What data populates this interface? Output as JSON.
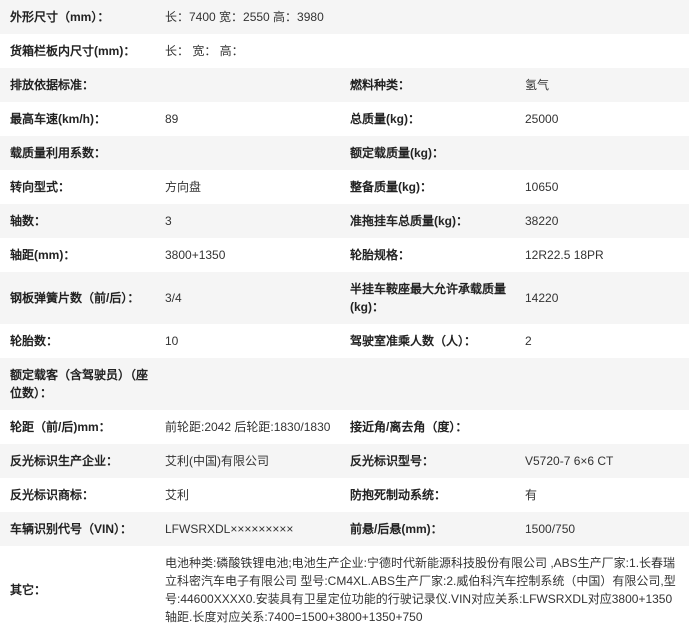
{
  "rows": [
    {
      "stripe": true,
      "full": true,
      "l1": "外形尺寸（mm）：",
      "v1": "长：7400 宽：2550 高：3980"
    },
    {
      "stripe": false,
      "full": true,
      "l1": "货箱栏板内尺寸(mm)：",
      "v1": "长： 宽： 高："
    },
    {
      "stripe": true,
      "l1": "排放依据标准：",
      "v1": "",
      "l2": "燃料种类：",
      "v2": "氢气"
    },
    {
      "stripe": false,
      "l1": "最高车速(km/h)：",
      "v1": "89",
      "l2": "总质量(kg)：",
      "v2": "25000"
    },
    {
      "stripe": true,
      "l1": "载质量利用系数：",
      "v1": "",
      "l2": "额定载质量(kg)：",
      "v2": ""
    },
    {
      "stripe": false,
      "l1": "转向型式：",
      "v1": "方向盘",
      "l2": "整备质量(kg)：",
      "v2": "10650"
    },
    {
      "stripe": true,
      "l1": "轴数：",
      "v1": "3",
      "l2": "准拖挂车总质量(kg)：",
      "v2": "38220"
    },
    {
      "stripe": false,
      "l1": "轴距(mm)：",
      "v1": "3800+1350",
      "l2": "轮胎规格：",
      "v2": "12R22.5 18PR"
    },
    {
      "stripe": true,
      "l1": "钢板弹簧片数（前/后）：",
      "v1": "3/4",
      "l2": "半挂车鞍座最大允许承载质量(kg)：",
      "v2": "14220"
    },
    {
      "stripe": false,
      "l1": "轮胎数：",
      "v1": "10",
      "l2": "驾驶室准乘人数（人）：",
      "v2": "2"
    },
    {
      "stripe": true,
      "full": true,
      "l1": "额定载客（含驾驶员）（座位数）：",
      "v1": ""
    },
    {
      "stripe": false,
      "l1": "轮距（前/后)mm：",
      "v1": "前轮距:2042 后轮距:1830/1830",
      "l2": "接近角/离去角（度）：",
      "v2": ""
    },
    {
      "stripe": true,
      "l1": "反光标识生产企业：",
      "v1": "艾利(中国)有限公司",
      "l2": "反光标识型号：",
      "v2": "V5720-7 6×6 CT"
    },
    {
      "stripe": false,
      "l1": "反光标识商标：",
      "v1": "艾利",
      "l2": "防抱死制动系统：",
      "v2": "有"
    },
    {
      "stripe": true,
      "l1": "车辆识别代号（VIN）：",
      "v1": "LFWSRXDL×××××××××",
      "l2": "前悬/后悬(mm)：",
      "v2": "1500/750"
    },
    {
      "stripe": false,
      "full": true,
      "l1": "其它：",
      "v1": "电池种类:磷酸铁锂电池;电池生产企业:宁德时代新能源科技股份有限公司 ,ABS生产厂家:1.长春瑞立科密汽车电子有限公司 型号:CM4XL.ABS生产厂家:2.威伯科汽车控制系统（中国）有限公司,型号:44600XXXX0.安装具有卫星定位功能的行驶记录仪.VIN对应关系:LFWSRXDL对应3800+1350轴距.长度对应关系:7400=1500+3800+1350+750"
    }
  ]
}
